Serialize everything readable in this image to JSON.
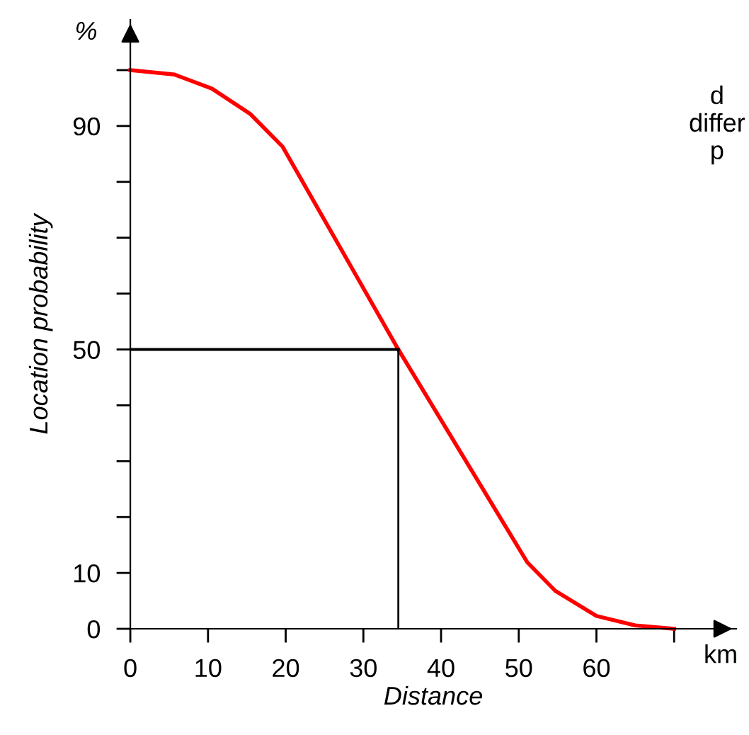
{
  "chart_data": {
    "type": "line",
    "xlabel": "Distance",
    "ylabel": "Location probability",
    "x": [
      0,
      5.7,
      10.5,
      15.4,
      19.6,
      34.5,
      51.1,
      54.7,
      60,
      65,
      70
    ],
    "series": [
      {
        "color": "#ff0000",
        "values": [
          100,
          99.2,
          96.7,
          92.2,
          86.3,
          50,
          11.9,
          6.8,
          2.3,
          0.6,
          0
        ]
      }
    ],
    "xlim": [
      0,
      78
    ],
    "ylim": [
      0,
      109
    ],
    "xticks": [
      0,
      10,
      20,
      30,
      40,
      50,
      60,
      {
        "value": 70,
        "label": null
      }
    ],
    "yticks": [
      0,
      10,
      {
        "value": 20,
        "label": null
      },
      {
        "value": 30,
        "label": null
      },
      {
        "value": 40,
        "label": null
      },
      50,
      {
        "value": 60,
        "label": null
      },
      {
        "value": 70,
        "label": null
      },
      {
        "value": 80,
        "label": null
      },
      90,
      {
        "value": 100,
        "label": null
      }
    ],
    "ref_lines": [
      {
        "axis": "y",
        "value": 50,
        "color": "#000000"
      },
      {
        "axis": "x",
        "value": 34.5,
        "color": "#000000"
      }
    ],
    "grid": false,
    "legend": false,
    "marker": "none",
    "line_style": "solid",
    "annotations": [
      "km",
      "%",
      "d\ndiffer\np"
    ]
  }
}
